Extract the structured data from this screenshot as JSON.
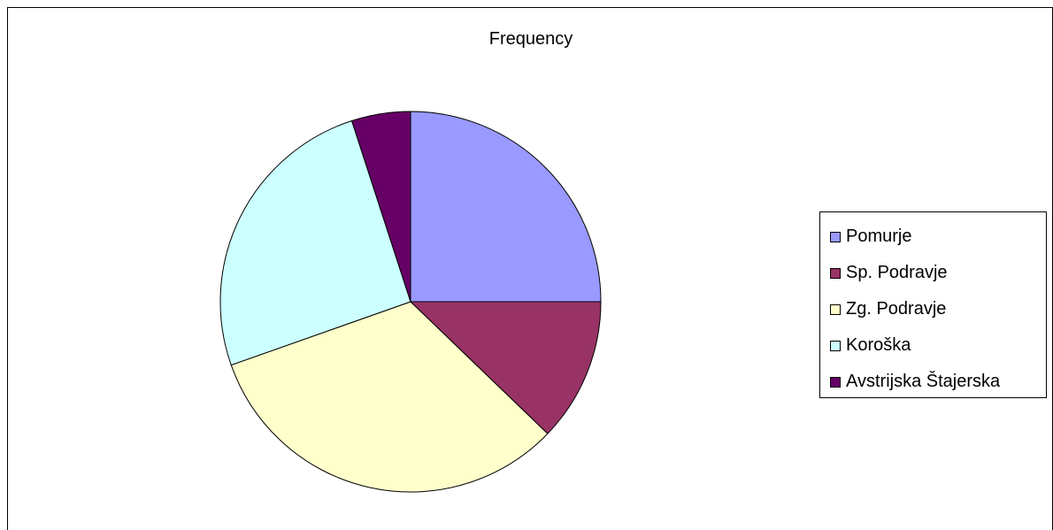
{
  "chart_data": {
    "type": "pie",
    "title": "Frequency",
    "legend_position": "right",
    "categories": [
      "Pomurje",
      "Sp. Podravje",
      "Zg. Podravje",
      "Koroška",
      "Avstrijska Štajerska"
    ],
    "values": [
      25.0,
      12.2,
      32.4,
      25.4,
      5.0
    ],
    "colors": [
      "#9999FF",
      "#993366",
      "#FFFFCC",
      "#CCFFFF",
      "#660066"
    ]
  }
}
